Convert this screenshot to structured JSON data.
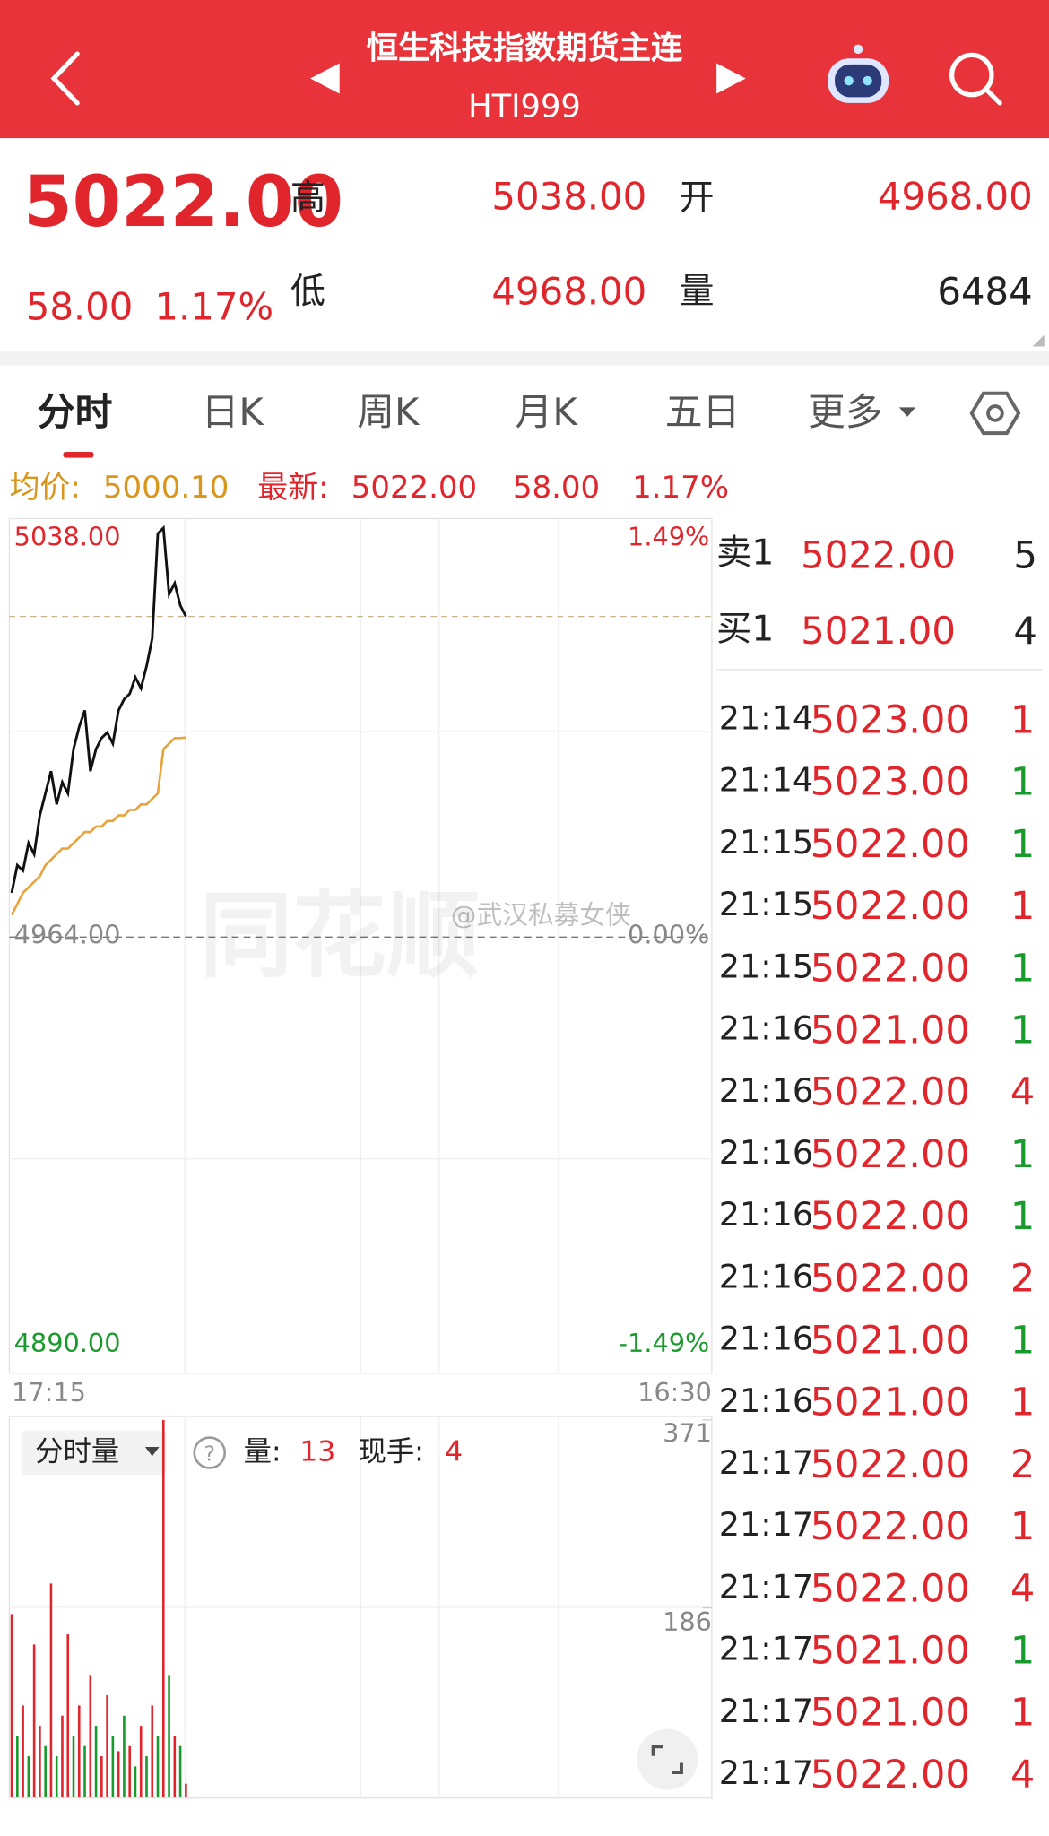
{
  "header": {
    "title": "恒生科技指数期货主连",
    "code": "HTI999"
  },
  "quote": {
    "price": "5022.00",
    "change": "58.00",
    "change_pct": "1.17%",
    "high_label": "高",
    "high": "5038.00",
    "open_label": "开",
    "open": "4968.00",
    "low_label": "低",
    "low": "4968.00",
    "volume_label": "量",
    "volume": "6484"
  },
  "tabs": [
    "分时",
    "日K",
    "周K",
    "月K",
    "五日",
    "更多"
  ],
  "info": {
    "avg_label": "均价:",
    "avg": "5000.10",
    "latest_label": "最新:",
    "latest": "5022.00",
    "change": "58.00",
    "change_pct": "1.17%"
  },
  "price_chart": {
    "type": "line",
    "ylim": [
      4890,
      5038
    ],
    "yticks": [
      {
        "value": 5038,
        "label": "5038.00"
      },
      {
        "value": 4964,
        "label": "4964.00"
      },
      {
        "value": 4890,
        "label": "4890.00"
      }
    ],
    "pct_ticks": [
      "1.49%",
      "0.00%",
      "-1.49%"
    ],
    "x_start": "17:15",
    "x_end": "16:30",
    "series": [
      {
        "color": "#111111",
        "values": [
          4972,
          4977,
          4976,
          4981,
          4979,
          4986,
          4990,
          4994,
          4988,
          4992,
          4990,
          4998,
          5002,
          5005,
          4994,
          4998,
          5000,
          5001,
          4999,
          5005,
          5007,
          5008,
          5011,
          5009,
          5013,
          5018,
          5037,
          5038,
          5026,
          5028,
          5024,
          5022
        ]
      },
      {
        "color": "#e8a33d",
        "values": [
          4968,
          4970,
          4972,
          4973,
          4974,
          4975,
          4977,
          4978,
          4979,
          4980,
          4980,
          4981,
          4982,
          4983,
          4983,
          4984,
          4984,
          4985,
          4985,
          4986,
          4986,
          4987,
          4987,
          4988,
          4988,
          4989,
          4990,
          4998,
          4999,
          5000,
          5000,
          5000.1
        ]
      }
    ]
  },
  "volume_chart": {
    "type": "bar",
    "ylim": [
      0,
      371
    ],
    "yticks": [
      371,
      186
    ],
    "selector": "分时量",
    "vol_label": "量:",
    "vol": "13",
    "hand_label": "现手:",
    "hand": "4",
    "values": [
      180,
      60,
      90,
      40,
      150,
      70,
      50,
      210,
      40,
      80,
      160,
      60,
      90,
      50,
      120,
      70,
      40,
      100,
      60,
      45,
      80,
      50,
      30,
      70,
      40,
      90,
      60,
      371,
      120,
      60,
      50,
      13
    ],
    "colors": [
      "#e0262c",
      "#1a9a2c",
      "#e0262c",
      "#1a9a2c",
      "#e0262c",
      "#e0262c",
      "#1a9a2c",
      "#e0262c",
      "#1a9a2c",
      "#e0262c",
      "#e0262c",
      "#1a9a2c",
      "#e0262c",
      "#1a9a2c",
      "#e0262c",
      "#1a9a2c",
      "#e0262c",
      "#e0262c",
      "#1a9a2c",
      "#e0262c",
      "#1a9a2c",
      "#e0262c",
      "#1a9a2c",
      "#e0262c",
      "#1a9a2c",
      "#e0262c",
      "#1a9a2c",
      "#e0262c",
      "#1a9a2c",
      "#e0262c",
      "#1a9a2c",
      "#e0262c"
    ]
  },
  "order_book": [
    {
      "label": "卖1",
      "price": "5022.00",
      "qty": "5"
    },
    {
      "label": "买1",
      "price": "5021.00",
      "qty": "4"
    }
  ],
  "trades": [
    {
      "time": "21:14",
      "price": "5023.00",
      "qty": "1",
      "color": "#e0262c"
    },
    {
      "time": "21:14",
      "price": "5023.00",
      "qty": "1",
      "color": "#1a9a2c"
    },
    {
      "time": "21:15",
      "price": "5022.00",
      "qty": "1",
      "color": "#1a9a2c"
    },
    {
      "time": "21:15",
      "price": "5022.00",
      "qty": "1",
      "color": "#e0262c"
    },
    {
      "time": "21:15",
      "price": "5022.00",
      "qty": "1",
      "color": "#1a9a2c"
    },
    {
      "time": "21:16",
      "price": "5021.00",
      "qty": "1",
      "color": "#1a9a2c"
    },
    {
      "time": "21:16",
      "price": "5022.00",
      "qty": "4",
      "color": "#e0262c"
    },
    {
      "time": "21:16",
      "price": "5022.00",
      "qty": "1",
      "color": "#1a9a2c"
    },
    {
      "time": "21:16",
      "price": "5022.00",
      "qty": "1",
      "color": "#1a9a2c"
    },
    {
      "time": "21:16",
      "price": "5022.00",
      "qty": "2",
      "color": "#e0262c"
    },
    {
      "time": "21:16",
      "price": "5021.00",
      "qty": "1",
      "color": "#1a9a2c"
    },
    {
      "time": "21:16",
      "price": "5021.00",
      "qty": "1",
      "color": "#e0262c"
    },
    {
      "time": "21:17",
      "price": "5022.00",
      "qty": "2",
      "color": "#e0262c"
    },
    {
      "time": "21:17",
      "price": "5022.00",
      "qty": "1",
      "color": "#e0262c"
    },
    {
      "time": "21:17",
      "price": "5022.00",
      "qty": "4",
      "color": "#e0262c"
    },
    {
      "time": "21:17",
      "price": "5021.00",
      "qty": "1",
      "color": "#1a9a2c"
    },
    {
      "time": "21:17",
      "price": "5021.00",
      "qty": "1",
      "color": "#e0262c"
    },
    {
      "time": "21:17",
      "price": "5022.00",
      "qty": "4",
      "color": "#e0262c"
    }
  ],
  "watermark": {
    "brand": "同花顺",
    "user": "@武汉私募女侠"
  }
}
